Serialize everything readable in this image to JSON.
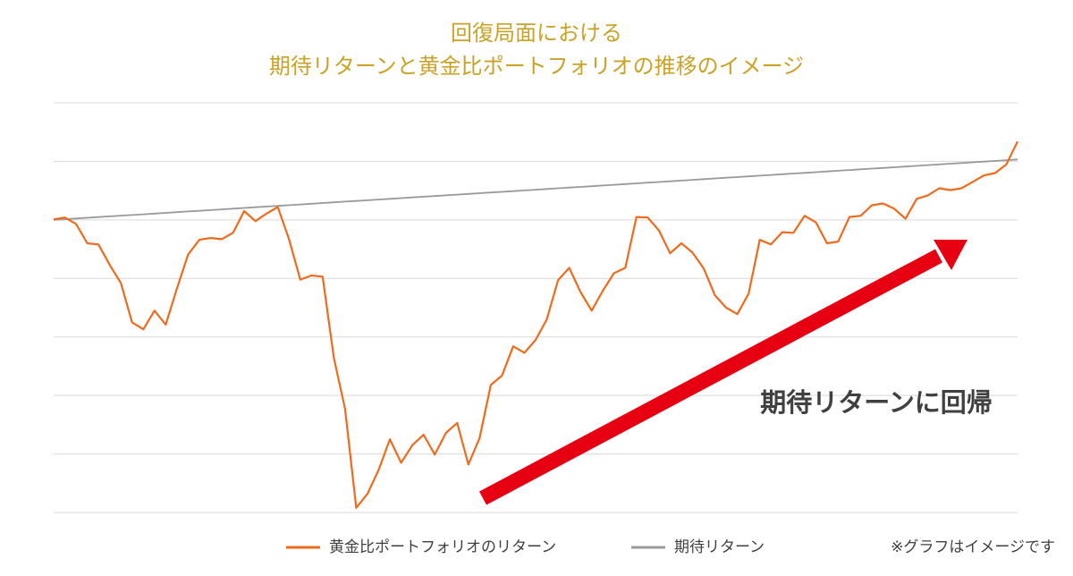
{
  "chart_data": {
    "type": "line",
    "title": [
      "回復局面における",
      "期待リターンと黄金比ポートフォリオの推移のイメージ"
    ],
    "categories": [
      null,
      null,
      null,
      null,
      null,
      null,
      null,
      null,
      null,
      null,
      null,
      null,
      null,
      null,
      null,
      null,
      null,
      null,
      null,
      null,
      null,
      null,
      null,
      null,
      null,
      null,
      null,
      null,
      null,
      null,
      null,
      null,
      null,
      null,
      null,
      null,
      null,
      null,
      null,
      null,
      null,
      null,
      null,
      null,
      null,
      null,
      null,
      null,
      null,
      null,
      null,
      null,
      null,
      null,
      null,
      null,
      null,
      null,
      null,
      null,
      null,
      null,
      null,
      null,
      null,
      null,
      null,
      null,
      null,
      null,
      null,
      null,
      null,
      null,
      null,
      null,
      null,
      null,
      null,
      null,
      null,
      null,
      null,
      null,
      null,
      null,
      null
    ],
    "series": [
      {
        "name": "黄金比ポートフォリオのリターン",
        "color": "#f06a1c",
        "values": [
          5.01,
          5.04,
          4.93,
          4.6,
          4.58,
          4.23,
          3.92,
          3.25,
          3.13,
          3.45,
          3.21,
          3.83,
          4.41,
          4.66,
          4.69,
          4.67,
          4.78,
          5.15,
          4.98,
          5.11,
          5.22,
          4.67,
          3.98,
          4.05,
          4.03,
          2.64,
          1.77,
          0.08,
          0.32,
          0.73,
          1.25,
          0.85,
          1.15,
          1.33,
          0.99,
          1.36,
          1.53,
          0.82,
          1.27,
          2.18,
          2.34,
          2.84,
          2.73,
          2.95,
          3.3,
          3.97,
          4.18,
          3.77,
          3.45,
          3.79,
          4.09,
          4.18,
          5.05,
          5.04,
          4.82,
          4.43,
          4.6,
          4.44,
          4.17,
          3.71,
          3.5,
          3.39,
          3.74,
          4.66,
          4.58,
          4.79,
          4.78,
          5.07,
          4.96,
          4.6,
          4.63,
          5.05,
          5.07,
          5.25,
          5.28,
          5.19,
          5.02,
          5.36,
          5.42,
          5.54,
          5.51,
          5.54,
          5.65,
          5.76,
          5.8,
          5.95,
          6.34
        ]
      },
      {
        "name": "期待リターン",
        "color": "#999999",
        "values": [
          5,
          5.012,
          5.024,
          5.036,
          5.048,
          5.06,
          5.072,
          5.084,
          5.096,
          5.108,
          5.12,
          5.132,
          5.144,
          5.156,
          5.168,
          5.18,
          5.192,
          5.204,
          5.216,
          5.228,
          5.24,
          5.252,
          5.264,
          5.276,
          5.288,
          5.3,
          5.312,
          5.324,
          5.336,
          5.348,
          5.36,
          5.372,
          5.384,
          5.396,
          5.408,
          5.42,
          5.432,
          5.444,
          5.456,
          5.468,
          5.48,
          5.492,
          5.504,
          5.516,
          5.528,
          5.54,
          5.552,
          5.564,
          5.576,
          5.588,
          5.6,
          5.612,
          5.624,
          5.636,
          5.648,
          5.66,
          5.672,
          5.684,
          5.696,
          5.708,
          5.72,
          5.732,
          5.744,
          5.756,
          5.768,
          5.78,
          5.792,
          5.804,
          5.816,
          5.828,
          5.84,
          5.852,
          5.864,
          5.876,
          5.888,
          5.9,
          5.912,
          5.924,
          5.936,
          5.948,
          5.96,
          5.972,
          5.984,
          5.996,
          6.008,
          6.02,
          6.032
        ]
      }
    ],
    "ylim": [
      0,
      7
    ],
    "yticks": [
      0,
      1,
      2,
      3,
      4,
      5,
      6,
      7
    ],
    "grid": true,
    "annotation": "期待リターンに回帰",
    "note": "※グラフはイメージです"
  }
}
